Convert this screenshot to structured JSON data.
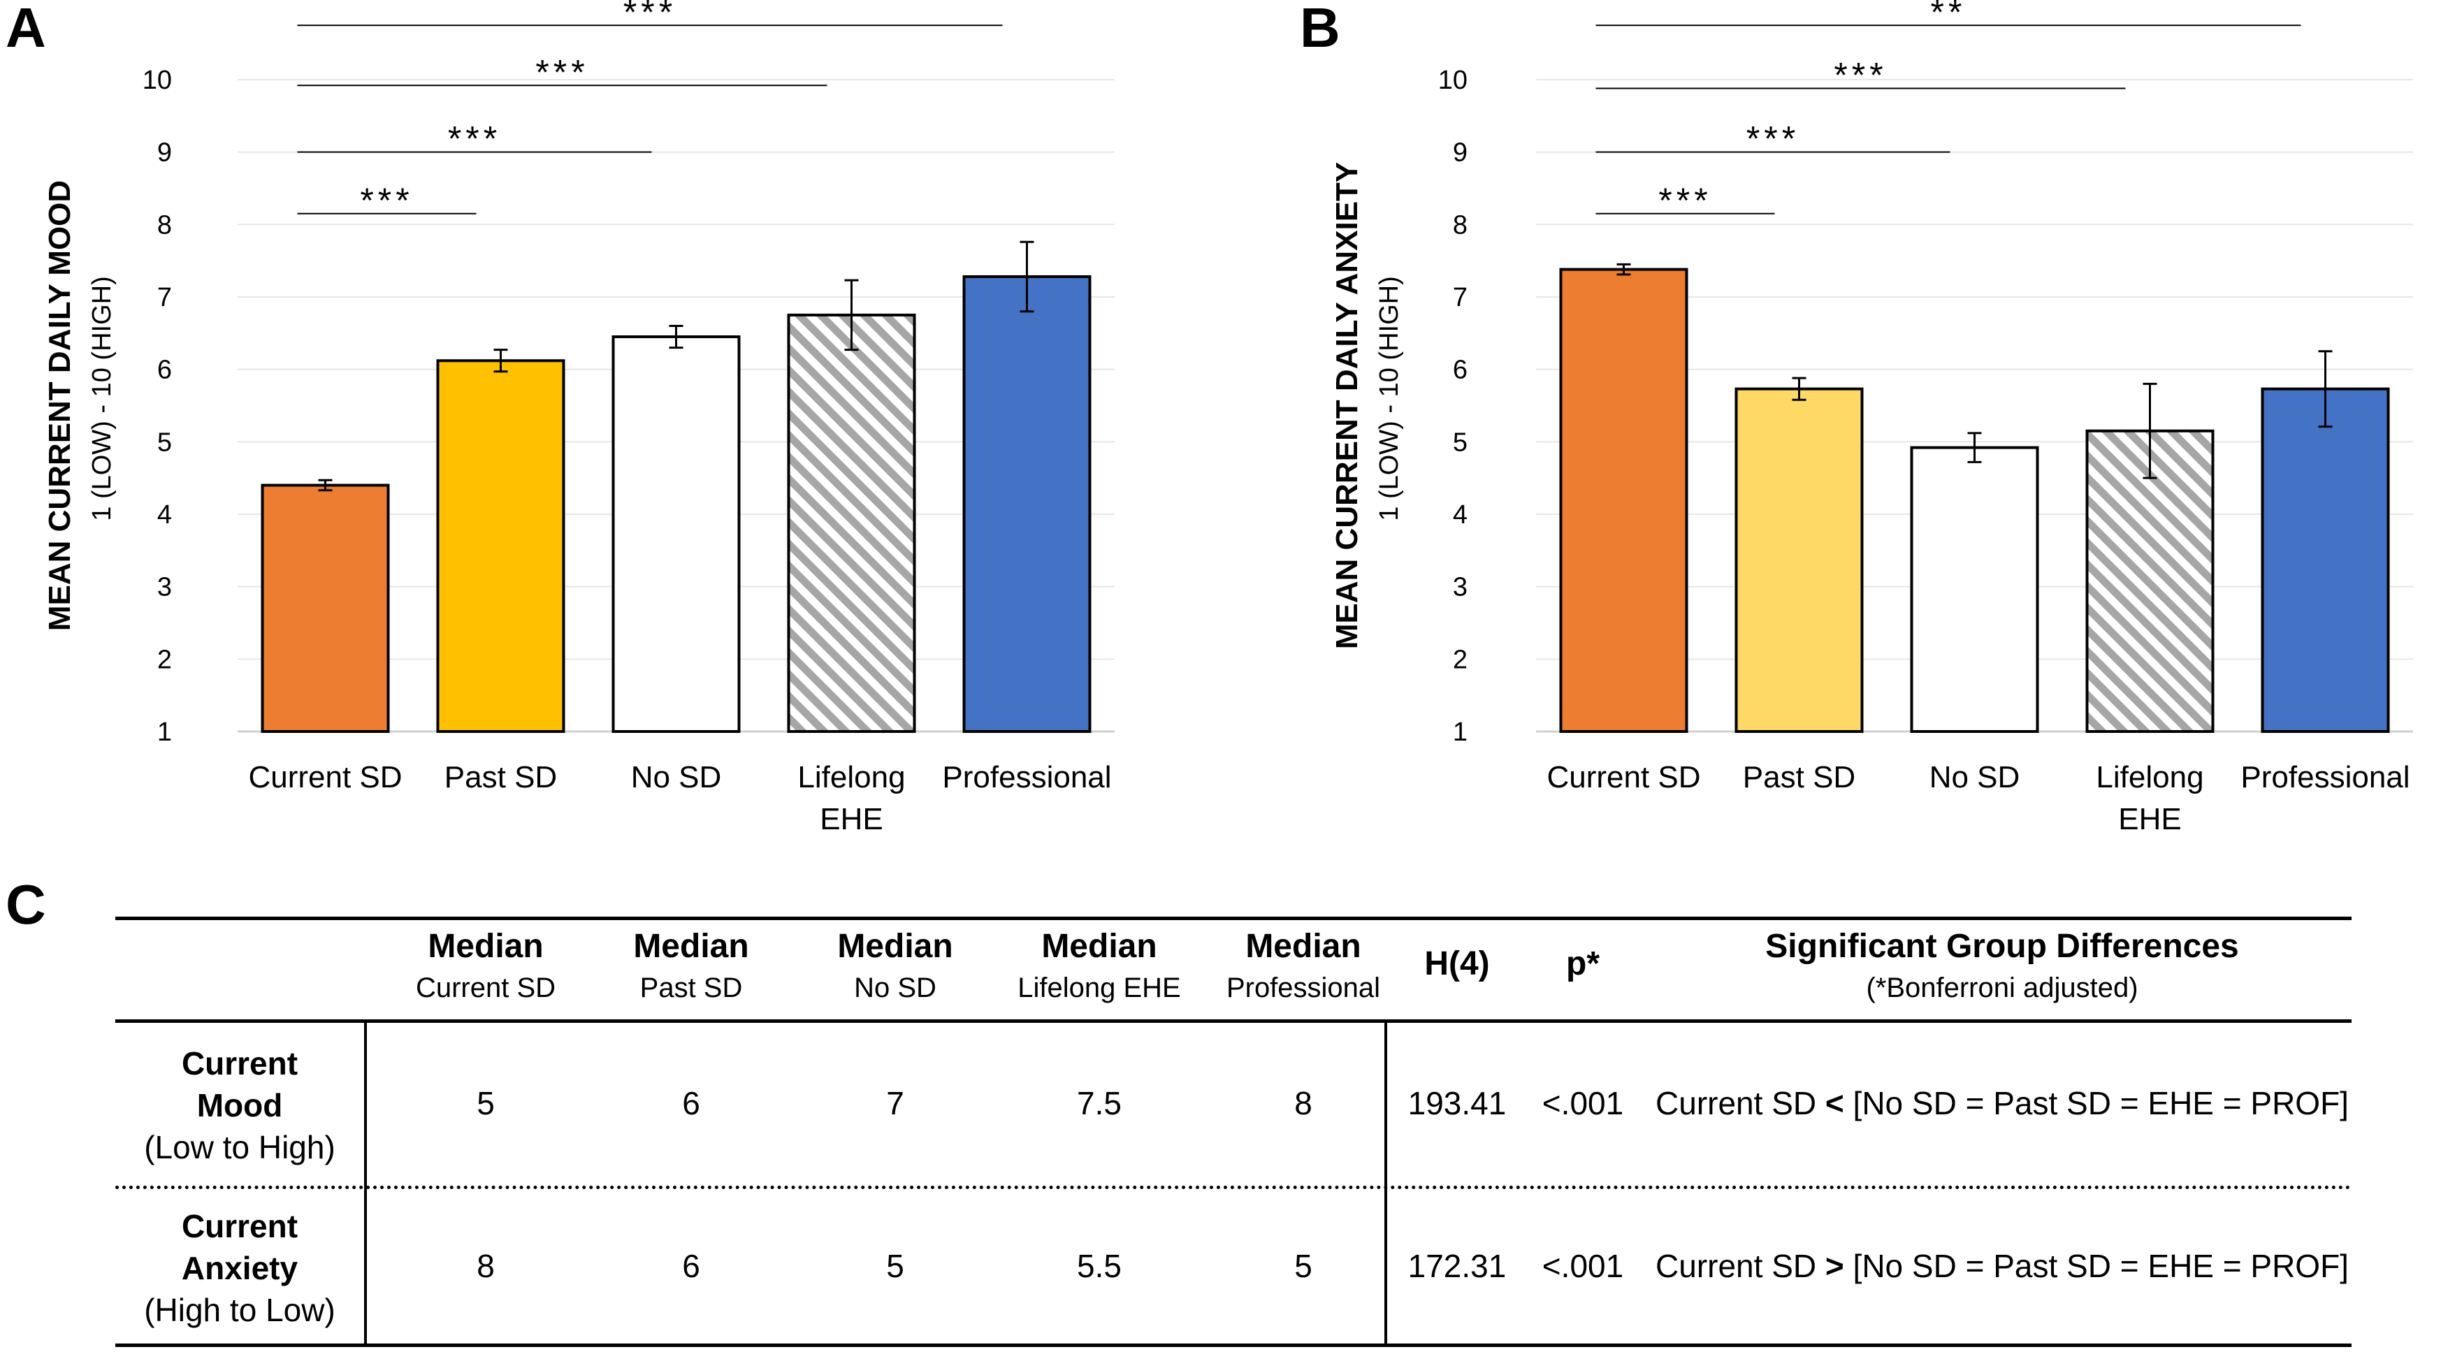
{
  "panels": {
    "a": "A",
    "b": "B",
    "c": "C"
  },
  "colors": {
    "current_sd_a": "#ED7D31",
    "past_sd_a": "#FFC000",
    "professional_a": "#4472C4",
    "current_sd_b": "#ED7D31",
    "past_sd_b": "#FFD966",
    "professional_b": "#4472C4",
    "no_sd": "#FFFFFF",
    "hatch": "#A6A6A6"
  },
  "chart_data": [
    {
      "id": "A",
      "type": "bar",
      "categories": [
        "Current SD",
        "Past SD",
        "No SD",
        "Lifelong EHE",
        "Professional"
      ],
      "values": [
        4.4,
        6.12,
        6.45,
        6.75,
        7.28
      ],
      "errors": [
        0.07,
        0.15,
        0.15,
        0.48,
        0.48
      ],
      "ylabel": "MEAN CURRENT DAILY MOOD",
      "ylabel2": "1 (LOW) - 10 (HIGH)",
      "ylim": [
        1,
        10
      ],
      "yticks": [
        1,
        2,
        3,
        4,
        5,
        6,
        7,
        8,
        9,
        10
      ],
      "significance": [
        {
          "from": "Current SD",
          "to": "Past SD",
          "level": 8.15,
          "label": "***"
        },
        {
          "from": "Current SD",
          "to": "No SD",
          "level": 9.0,
          "label": "***"
        },
        {
          "from": "Current SD",
          "to": "Lifelong EHE",
          "level": 9.92,
          "label": "***"
        },
        {
          "from": "Current SD",
          "to": "Professional",
          "level": 10.75,
          "label": "***"
        }
      ]
    },
    {
      "id": "B",
      "type": "bar",
      "categories": [
        "Current SD",
        "Past SD",
        "No SD",
        "Lifelong EHE",
        "Professional"
      ],
      "values": [
        7.38,
        5.73,
        4.92,
        5.15,
        5.73
      ],
      "errors": [
        0.07,
        0.15,
        0.2,
        0.65,
        0.52
      ],
      "ylabel": "MEAN CURRENT DAILY ANXIETY",
      "ylabel2": "1 (LOW) - 10 (HIGH)",
      "ylim": [
        1,
        10
      ],
      "yticks": [
        1,
        2,
        3,
        4,
        5,
        6,
        7,
        8,
        9,
        10
      ],
      "significance": [
        {
          "from": "Current SD",
          "to": "Past SD",
          "level": 8.15,
          "label": "***"
        },
        {
          "from": "Current SD",
          "to": "No SD",
          "level": 9.0,
          "label": "***"
        },
        {
          "from": "Current SD",
          "to": "Lifelong EHE",
          "level": 9.88,
          "label": "***"
        },
        {
          "from": "Current SD",
          "to": "Professional",
          "level": 10.75,
          "label": "**"
        }
      ]
    }
  ],
  "table": {
    "headers": [
      {
        "main": "",
        "sub": ""
      },
      {
        "main": "Median",
        "sub": "Current SD"
      },
      {
        "main": "Median",
        "sub": "Past SD"
      },
      {
        "main": "Median",
        "sub": "No SD"
      },
      {
        "main": "Median",
        "sub": "Lifelong EHE"
      },
      {
        "main": "Median",
        "sub": "Professional"
      },
      {
        "main": "H(4)",
        "sub": ""
      },
      {
        "main": "p*",
        "sub": ""
      },
      {
        "main": "Significant Group Differences",
        "sub": "(*Bonferroni adjusted)"
      }
    ],
    "rows": [
      {
        "label1": "Current",
        "label2": "Mood",
        "label3": "(Low to High)",
        "medians": [
          "5",
          "6",
          "7",
          "7.5",
          "8"
        ],
        "h": "193.41",
        "p": "<.001",
        "diff_a": "Current SD",
        "diff_op": "<",
        "diff_b": "[No SD = Past SD = EHE = PROF]"
      },
      {
        "label1": "Current",
        "label2": "Anxiety",
        "label3": "(High to Low)",
        "medians": [
          "8",
          "6",
          "5",
          "5.5",
          "5"
        ],
        "h": "172.31",
        "p": "<.001",
        "diff_a": "Current SD",
        "diff_op": ">",
        "diff_b": "[No SD = Past SD = EHE = PROF]"
      }
    ]
  }
}
